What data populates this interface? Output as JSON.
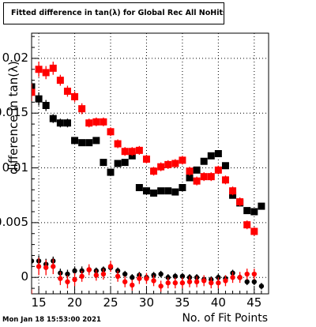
{
  "title": "Fitted difference in tan(λ) for Global Rec All NoHits",
  "timestamp": "Mon Jan 18 15:53:00 2021",
  "chart_data": {
    "type": "scatter",
    "title": "Fitted difference in tan(λ) for Global Rec All NoHits",
    "xlabel": "No. of Fit Points",
    "ylabel": "difference in tan(λ)",
    "xlim": [
      14,
      47
    ],
    "ylim": [
      -0.0015,
      0.0223
    ],
    "grid": true,
    "x_ticks": [
      "15",
      "20",
      "25",
      "30",
      "35",
      "40",
      "45"
    ],
    "y_ticks": [
      "0",
      "0.005",
      "0.01",
      "0.015",
      "0.02"
    ],
    "series": [
      {
        "color": "#000000",
        "marker": "square",
        "x": [
          14,
          15,
          16,
          17,
          18,
          19,
          20,
          21,
          22,
          23,
          24,
          25,
          26,
          27,
          28,
          29,
          30,
          31,
          32,
          33,
          34,
          35,
          36,
          37,
          38,
          39,
          40,
          41,
          42,
          43,
          44,
          45,
          46
        ],
        "y": [
          0.0174,
          0.0163,
          0.0157,
          0.0145,
          0.0141,
          0.0141,
          0.0125,
          0.0123,
          0.0123,
          0.0125,
          0.0105,
          0.0096,
          0.0104,
          0.0105,
          0.0111,
          0.0082,
          0.0079,
          0.0077,
          0.0079,
          0.0079,
          0.0078,
          0.0082,
          0.0091,
          0.0098,
          0.0106,
          0.0111,
          0.0113,
          0.0102,
          0.0075,
          0.0068,
          0.0061,
          0.006,
          0.0065
        ],
        "err": [
          0.0007,
          0.0006,
          0.0005,
          0.0004,
          0.0004,
          0.0004,
          0.0003,
          0.0003,
          0.0003,
          0.0003,
          0.0003,
          0.0003,
          0.0003,
          0.0003,
          0.0003,
          0.0003,
          0.0003,
          0.0003,
          0.0003,
          0.0003,
          0.0003,
          0.0003,
          0.0003,
          0.0003,
          0.0003,
          0.0003,
          0.0003,
          0.0003,
          0.0003,
          0.0003,
          0.0003,
          0.0003,
          0.0003
        ]
      },
      {
        "color": "#ff0000",
        "marker": "square",
        "x": [
          14,
          15,
          16,
          17,
          18,
          19,
          20,
          21,
          22,
          23,
          24,
          25,
          26,
          27,
          28,
          29,
          30,
          31,
          32,
          33,
          34,
          35,
          36,
          37,
          38,
          39,
          40,
          41,
          42,
          43,
          44,
          45
        ],
        "y": [
          0.0169,
          0.019,
          0.0187,
          0.0191,
          0.018,
          0.017,
          0.0165,
          0.0154,
          0.0141,
          0.0142,
          0.0142,
          0.0133,
          0.0122,
          0.0115,
          0.0115,
          0.0116,
          0.0108,
          0.0097,
          0.0101,
          0.0103,
          0.0104,
          0.0107,
          0.0097,
          0.0088,
          0.0092,
          0.0092,
          0.0098,
          0.0089,
          0.0079,
          0.0069,
          0.0048,
          0.0042
        ],
        "err": [
          0.0008,
          0.0007,
          0.0006,
          0.0006,
          0.0005,
          0.0005,
          0.0005,
          0.0005,
          0.0004,
          0.0004,
          0.0004,
          0.0004,
          0.0004,
          0.0004,
          0.0004,
          0.0004,
          0.0004,
          0.0004,
          0.0004,
          0.0004,
          0.0004,
          0.0004,
          0.0004,
          0.0004,
          0.0004,
          0.0004,
          0.0004,
          0.0004,
          0.0004,
          0.0004,
          0.0004,
          0.0004
        ]
      },
      {
        "color": "#000000",
        "marker": "circle",
        "x": [
          14,
          15,
          16,
          17,
          18,
          19,
          20,
          21,
          22,
          23,
          24,
          25,
          26,
          27,
          28,
          29,
          30,
          31,
          32,
          33,
          34,
          35,
          36,
          37,
          38,
          39,
          40,
          41,
          42,
          43,
          44,
          45,
          46
        ],
        "y": [
          0.0015,
          0.0015,
          0.0012,
          0.0015,
          0.0004,
          0.0003,
          0.0006,
          0.0006,
          0.0007,
          0.0006,
          0.0007,
          0.0009,
          0.0006,
          0.0003,
          0.0,
          0.0002,
          0.0,
          0.0002,
          0.0003,
          0.0,
          0.0001,
          0.0001,
          0.0,
          0.0,
          -0.0002,
          -0.0002,
          0.0,
          -0.0001,
          0.0004,
          0.0,
          -0.0004,
          -0.0004,
          -0.0008
        ],
        "err": [
          0.0006,
          0.0005,
          0.0005,
          0.0004,
          0.0004,
          0.0004,
          0.0004,
          0.0004,
          0.0003,
          0.0003,
          0.0003,
          0.0003,
          0.0003,
          0.0003,
          0.0003,
          0.0003,
          0.0003,
          0.0003,
          0.0003,
          0.0003,
          0.0003,
          0.0003,
          0.0003,
          0.0003,
          0.0003,
          0.0003,
          0.0003,
          0.0003,
          0.0003,
          0.0003,
          0.0003,
          0.0003,
          0.0003
        ]
      },
      {
        "color": "#ff0000",
        "marker": "circle",
        "x": [
          14,
          15,
          16,
          17,
          18,
          19,
          20,
          21,
          22,
          23,
          24,
          25,
          26,
          27,
          28,
          29,
          30,
          31,
          32,
          33,
          34,
          35,
          36,
          37,
          38,
          39,
          40,
          41,
          42,
          43,
          44,
          45
        ],
        "y": [
          -0.002,
          0.001,
          0.0009,
          0.001,
          -0.0001,
          -0.0004,
          -0.0002,
          0.0001,
          0.0007,
          0.0002,
          0.0003,
          0.001,
          0.0001,
          -0.0004,
          -0.0007,
          -0.0001,
          -0.0001,
          -0.0003,
          -0.0008,
          -0.0005,
          -0.0005,
          -0.0005,
          -0.0004,
          -0.0004,
          -0.0003,
          -0.0005,
          -0.0005,
          -0.0003,
          0.0,
          0.0,
          0.0003,
          0.0003
        ],
        "err": [
          0.0009,
          0.0008,
          0.0007,
          0.0007,
          0.0006,
          0.0006,
          0.0006,
          0.0005,
          0.0005,
          0.0005,
          0.0005,
          0.0005,
          0.0005,
          0.0005,
          0.0005,
          0.0005,
          0.0005,
          0.0005,
          0.0005,
          0.0005,
          0.0005,
          0.0005,
          0.0005,
          0.0005,
          0.0005,
          0.0005,
          0.0005,
          0.0005,
          0.0005,
          0.0005,
          0.0005,
          0.0005
        ]
      }
    ]
  }
}
